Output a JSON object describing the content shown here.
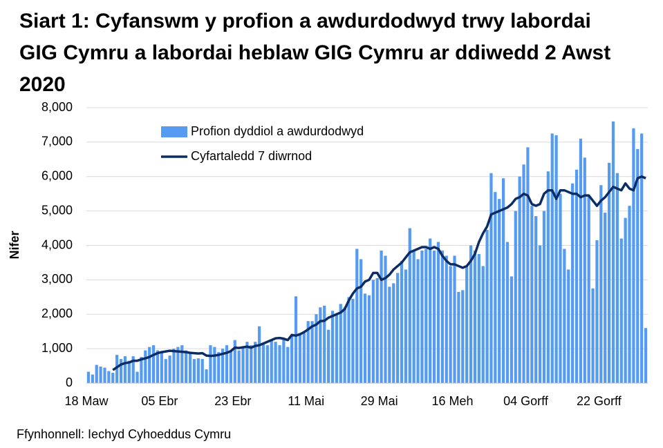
{
  "chart_data": {
    "type": "bar",
    "title": "Siart 1: Cyfanswm y profion a awdurdodwyd trwy labordai GIG Cymru a labordai heblaw GIG Cymru ar ddiwedd 2 Awst 2020",
    "y_label": "Nifer",
    "source": "Ffynhonnell: Iechyd Cyhoeddus Cymru",
    "categories": [
      "18 Maw",
      null,
      null,
      null,
      null,
      null,
      null,
      null,
      null,
      null,
      null,
      null,
      null,
      null,
      null,
      null,
      null,
      null,
      "05 Ebr",
      null,
      null,
      null,
      null,
      null,
      null,
      null,
      null,
      null,
      null,
      null,
      null,
      null,
      null,
      null,
      null,
      null,
      "23 Ebr",
      null,
      null,
      null,
      null,
      null,
      null,
      null,
      null,
      null,
      null,
      null,
      null,
      null,
      null,
      null,
      null,
      null,
      "11 Mai",
      null,
      null,
      null,
      null,
      null,
      null,
      null,
      null,
      null,
      null,
      null,
      null,
      null,
      null,
      null,
      null,
      null,
      "29 Mai",
      null,
      null,
      null,
      null,
      null,
      null,
      null,
      null,
      null,
      null,
      null,
      null,
      null,
      null,
      null,
      null,
      null,
      "16 Meh",
      null,
      null,
      null,
      null,
      null,
      null,
      null,
      null,
      null,
      null,
      null,
      null,
      null,
      null,
      null,
      null,
      null,
      "04 Gorff",
      null,
      null,
      null,
      null,
      null,
      null,
      null,
      null,
      null,
      null,
      null,
      null,
      null,
      null,
      null,
      null,
      null,
      "22 Gorff",
      null,
      null,
      null,
      null,
      null,
      null,
      null,
      null,
      null,
      null,
      null
    ],
    "series": [
      {
        "name": "Profion dyddiol a awdurdodwyd",
        "type": "bar",
        "color": "#559bf2",
        "values": [
          330,
          250,
          530,
          480,
          450,
          350,
          300,
          820,
          700,
          780,
          650,
          780,
          330,
          760,
          950,
          1050,
          1100,
          950,
          880,
          700,
          800,
          1000,
          1050,
          1100,
          950,
          900,
          700,
          720,
          700,
          400,
          1100,
          1050,
          900,
          1000,
          1100,
          950,
          1250,
          950,
          1050,
          1200,
          1100,
          1200,
          1650,
          1150,
          1100,
          1250,
          1200,
          1100,
          1300,
          1050,
          1400,
          2520,
          1400,
          1500,
          1800,
          1800,
          2000,
          2200,
          2250,
          1550,
          2100,
          2000,
          2300,
          2200,
          2500,
          2450,
          3900,
          3600,
          2600,
          2550,
          3000,
          3050,
          3850,
          3700,
          2800,
          2900,
          3200,
          3550,
          3300,
          4500,
          3850,
          3600,
          3850,
          3900,
          4200,
          3850,
          4100,
          3850,
          3700,
          3400,
          3700,
          2650,
          2700,
          3400,
          4000,
          3850,
          3750,
          3400,
          4450,
          6100,
          5550,
          5350,
          5950,
          4100,
          3100,
          5000,
          6000,
          6350,
          6850,
          5150,
          4850,
          4000,
          5000,
          6150,
          7250,
          7200,
          5500,
          3900,
          3300,
          5800,
          6200,
          7100,
          6550,
          5450,
          2750,
          4150,
          5750,
          4950,
          6400,
          7600,
          6100,
          4200,
          4800,
          5150,
          7400,
          6800,
          7250,
          1600
        ]
      },
      {
        "name": "Cyfartaledd 7 diwrnod",
        "type": "line",
        "color": "#0b2d63",
        "values": [
          null,
          null,
          null,
          null,
          null,
          null,
          380,
          460,
          540,
          580,
          600,
          650,
          650,
          690,
          720,
          760,
          820,
          870,
          900,
          920,
          940,
          930,
          920,
          910,
          900,
          880,
          870,
          860,
          870,
          800,
          790,
          800,
          820,
          850,
          880,
          930,
          1030,
          1020,
          1040,
          1060,
          1030,
          1080,
          1100,
          1150,
          1200,
          1250,
          1300,
          1310,
          1290,
          1250,
          1400,
          1380,
          1420,
          1480,
          1560,
          1650,
          1700,
          1800,
          1810,
          1900,
          1950,
          2000,
          2050,
          2150,
          2400,
          2600,
          2750,
          2800,
          2950,
          3000,
          3200,
          3200,
          3000,
          3050,
          3150,
          3300,
          3400,
          3500,
          3650,
          3800,
          3850,
          3900,
          3950,
          3950,
          3900,
          3950,
          3900,
          3700,
          3550,
          3450,
          3450,
          3400,
          3350,
          3400,
          3550,
          3750,
          4100,
          4350,
          4550,
          4900,
          4950,
          5000,
          5050,
          5100,
          5200,
          5350,
          5400,
          5500,
          5450,
          5200,
          5150,
          5200,
          5500,
          5600,
          5600,
          5350,
          5600,
          5600,
          5550,
          5500,
          5500,
          5400,
          5450,
          5450,
          5300,
          5150,
          5300,
          5400,
          5550,
          5700,
          5650,
          5600,
          5800,
          5650,
          5600,
          5950,
          6000,
          5950
        ]
      }
    ],
    "ylim": [
      0,
      8000
    ],
    "yticks": [
      0,
      {
        "value": 1000,
        "label": "1,000"
      },
      {
        "value": 2000,
        "label": "2,000"
      },
      {
        "value": 3000,
        "label": "3,000"
      },
      {
        "value": 4000,
        "label": "4,000"
      },
      {
        "value": 5000,
        "label": "5,000"
      },
      {
        "value": 6000,
        "label": "6,000"
      },
      {
        "value": 7000,
        "label": "7,000"
      },
      {
        "value": 8000,
        "label": "8,000"
      }
    ],
    "grid": true
  }
}
